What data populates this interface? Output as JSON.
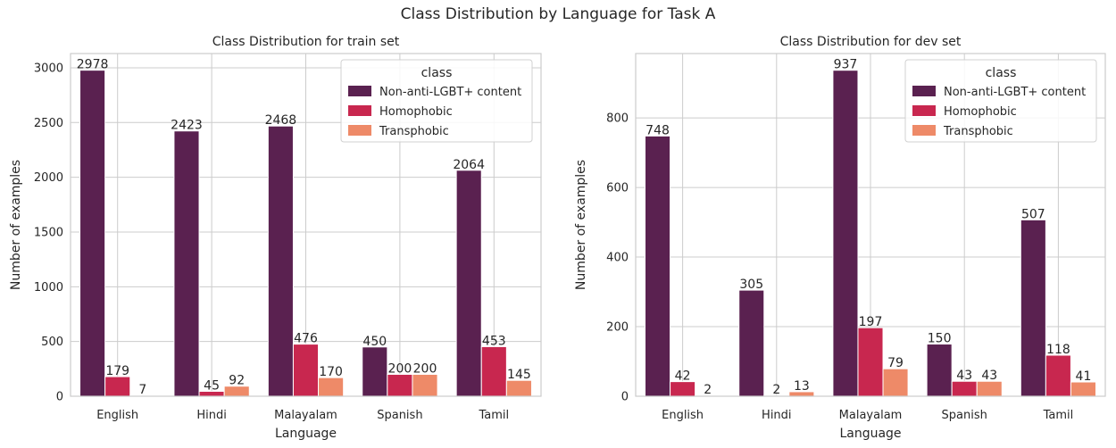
{
  "suptitle": "Class Distribution by Language for Task A",
  "colors": {
    "Non-anti-LGBT+ content": "#5a2150",
    "Homophobic": "#c8274f",
    "Transphobic": "#ee8a68"
  },
  "chart_data": [
    {
      "type": "bar",
      "title": "Class Distribution for train set",
      "xlabel": "Language",
      "ylabel": "Number of examples",
      "ylim": [
        0,
        3130
      ],
      "yticks": [
        0,
        500,
        1000,
        1500,
        2000,
        2500,
        3000
      ],
      "grid": true,
      "legend": {
        "title": "class",
        "placement": "top-right"
      },
      "categories": [
        "English",
        "Hindi",
        "Malayalam",
        "Spanish",
        "Tamil"
      ],
      "series": [
        {
          "name": "Non-anti-LGBT+ content",
          "values": [
            2978,
            2423,
            2468,
            450,
            2064
          ]
        },
        {
          "name": "Homophobic",
          "values": [
            179,
            45,
            476,
            200,
            453
          ]
        },
        {
          "name": "Transphobic",
          "values": [
            7,
            92,
            170,
            200,
            145
          ]
        }
      ]
    },
    {
      "type": "bar",
      "title": "Class Distribution for dev set",
      "xlabel": "Language",
      "ylabel": "Number of examples",
      "ylim": [
        0,
        985
      ],
      "yticks": [
        0,
        200,
        400,
        600,
        800
      ],
      "grid": true,
      "legend": {
        "title": "class",
        "placement": "top-right"
      },
      "categories": [
        "English",
        "Hindi",
        "Malayalam",
        "Spanish",
        "Tamil"
      ],
      "series": [
        {
          "name": "Non-anti-LGBT+ content",
          "values": [
            748,
            305,
            937,
            150,
            507
          ]
        },
        {
          "name": "Homophobic",
          "values": [
            42,
            2,
            197,
            43,
            118
          ]
        },
        {
          "name": "Transphobic",
          "values": [
            2,
            13,
            79,
            43,
            41
          ]
        }
      ]
    }
  ]
}
